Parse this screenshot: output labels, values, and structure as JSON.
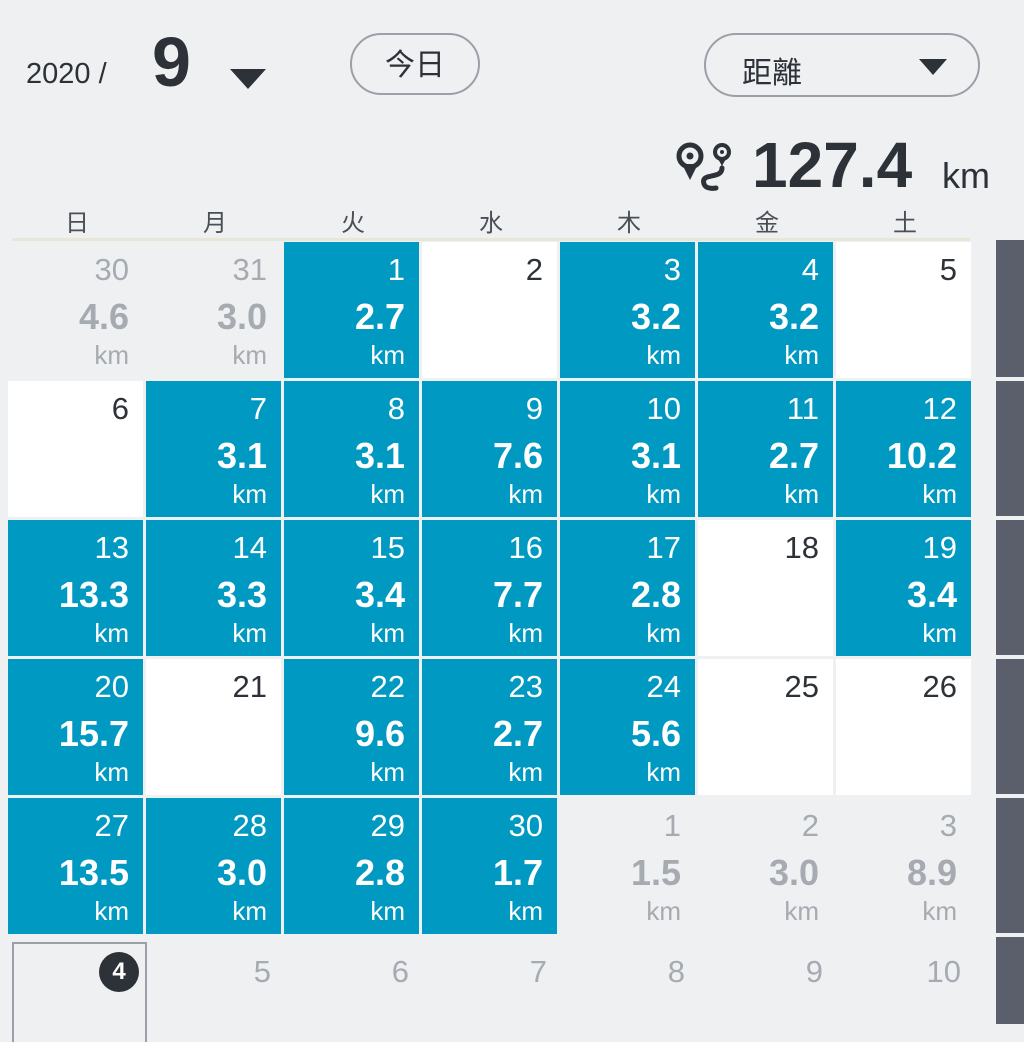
{
  "header": {
    "year_label": "2020 /",
    "month": "9",
    "today_button": "今日",
    "metric_label": "距離",
    "total_value": "127.4",
    "total_unit": "km"
  },
  "weekdays": [
    "日",
    "月",
    "火",
    "水",
    "木",
    "金",
    "土"
  ],
  "icons": {
    "month_dropdown": "caret-down-icon",
    "metric_dropdown": "caret-down-icon",
    "total": "route-icon"
  },
  "colors": {
    "activity_fill": "#0099c2",
    "empty_fill": "#ffffff",
    "scrollbar": "#5b5f6b"
  },
  "weeks": [
    [
      {
        "day": "30",
        "dist": "4.6",
        "unit": "km",
        "state": "other"
      },
      {
        "day": "31",
        "dist": "3.0",
        "unit": "km",
        "state": "other"
      },
      {
        "day": "1",
        "dist": "2.7",
        "unit": "km",
        "state": "has"
      },
      {
        "day": "2",
        "dist": "",
        "unit": "",
        "state": "empty"
      },
      {
        "day": "3",
        "dist": "3.2",
        "unit": "km",
        "state": "has"
      },
      {
        "day": "4",
        "dist": "3.2",
        "unit": "km",
        "state": "has"
      },
      {
        "day": "5",
        "dist": "",
        "unit": "",
        "state": "empty"
      }
    ],
    [
      {
        "day": "6",
        "dist": "",
        "unit": "",
        "state": "empty"
      },
      {
        "day": "7",
        "dist": "3.1",
        "unit": "km",
        "state": "has"
      },
      {
        "day": "8",
        "dist": "3.1",
        "unit": "km",
        "state": "has"
      },
      {
        "day": "9",
        "dist": "7.6",
        "unit": "km",
        "state": "has"
      },
      {
        "day": "10",
        "dist": "3.1",
        "unit": "km",
        "state": "has"
      },
      {
        "day": "11",
        "dist": "2.7",
        "unit": "km",
        "state": "has"
      },
      {
        "day": "12",
        "dist": "10.2",
        "unit": "km",
        "state": "has"
      }
    ],
    [
      {
        "day": "13",
        "dist": "13.3",
        "unit": "km",
        "state": "has"
      },
      {
        "day": "14",
        "dist": "3.3",
        "unit": "km",
        "state": "has"
      },
      {
        "day": "15",
        "dist": "3.4",
        "unit": "km",
        "state": "has"
      },
      {
        "day": "16",
        "dist": "7.7",
        "unit": "km",
        "state": "has"
      },
      {
        "day": "17",
        "dist": "2.8",
        "unit": "km",
        "state": "has"
      },
      {
        "day": "18",
        "dist": "",
        "unit": "",
        "state": "empty"
      },
      {
        "day": "19",
        "dist": "3.4",
        "unit": "km",
        "state": "has"
      }
    ],
    [
      {
        "day": "20",
        "dist": "15.7",
        "unit": "km",
        "state": "has"
      },
      {
        "day": "21",
        "dist": "",
        "unit": "",
        "state": "empty"
      },
      {
        "day": "22",
        "dist": "9.6",
        "unit": "km",
        "state": "has"
      },
      {
        "day": "23",
        "dist": "2.7",
        "unit": "km",
        "state": "has"
      },
      {
        "day": "24",
        "dist": "5.6",
        "unit": "km",
        "state": "has"
      },
      {
        "day": "25",
        "dist": "",
        "unit": "",
        "state": "empty"
      },
      {
        "day": "26",
        "dist": "",
        "unit": "",
        "state": "empty"
      }
    ],
    [
      {
        "day": "27",
        "dist": "13.5",
        "unit": "km",
        "state": "has"
      },
      {
        "day": "28",
        "dist": "3.0",
        "unit": "km",
        "state": "has"
      },
      {
        "day": "29",
        "dist": "2.8",
        "unit": "km",
        "state": "has"
      },
      {
        "day": "30",
        "dist": "1.7",
        "unit": "km",
        "state": "has"
      },
      {
        "day": "1",
        "dist": "1.5",
        "unit": "km",
        "state": "other"
      },
      {
        "day": "2",
        "dist": "3.0",
        "unit": "km",
        "state": "other"
      },
      {
        "day": "3",
        "dist": "8.9",
        "unit": "km",
        "state": "other"
      }
    ]
  ],
  "next_week": [
    {
      "day": "4",
      "today": true
    },
    {
      "day": "5",
      "today": false
    },
    {
      "day": "6",
      "today": false
    },
    {
      "day": "7",
      "today": false
    },
    {
      "day": "8",
      "today": false
    },
    {
      "day": "9",
      "today": false
    },
    {
      "day": "10",
      "today": false
    }
  ]
}
